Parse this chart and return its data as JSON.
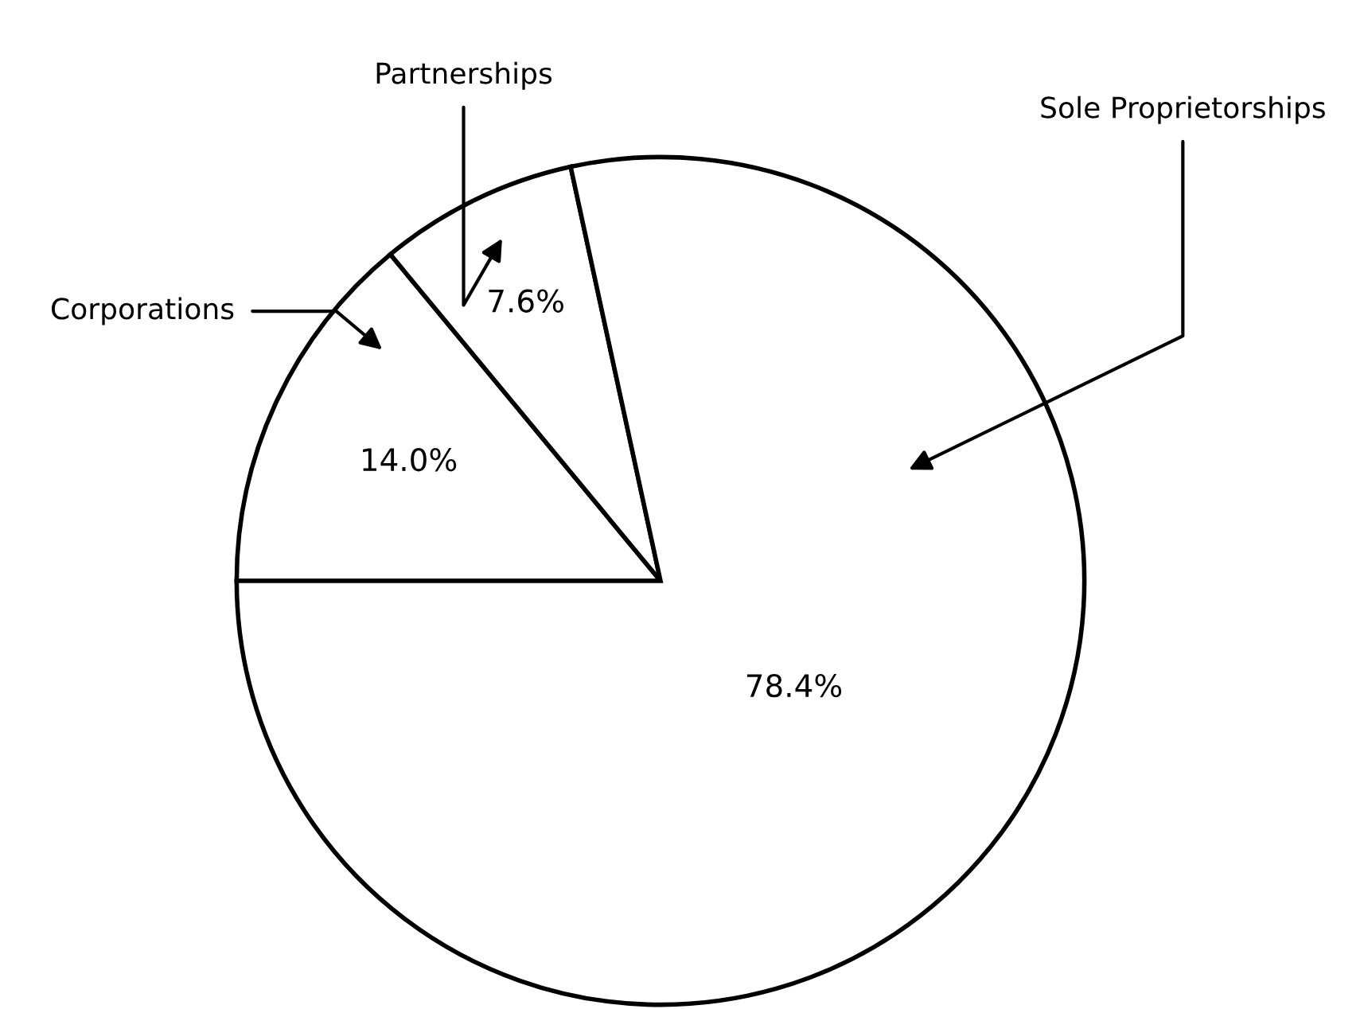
{
  "chart_data": {
    "type": "pie",
    "categories": [
      "Corporations",
      "Partnerships",
      "Sole Proprietorships"
    ],
    "values": [
      14.0,
      7.6,
      78.4
    ],
    "value_labels": [
      "14.0%",
      "7.6%",
      "78.4%"
    ],
    "colors": [
      "#ffffff",
      "#ffffff",
      "#ffffff"
    ],
    "legend": false
  }
}
